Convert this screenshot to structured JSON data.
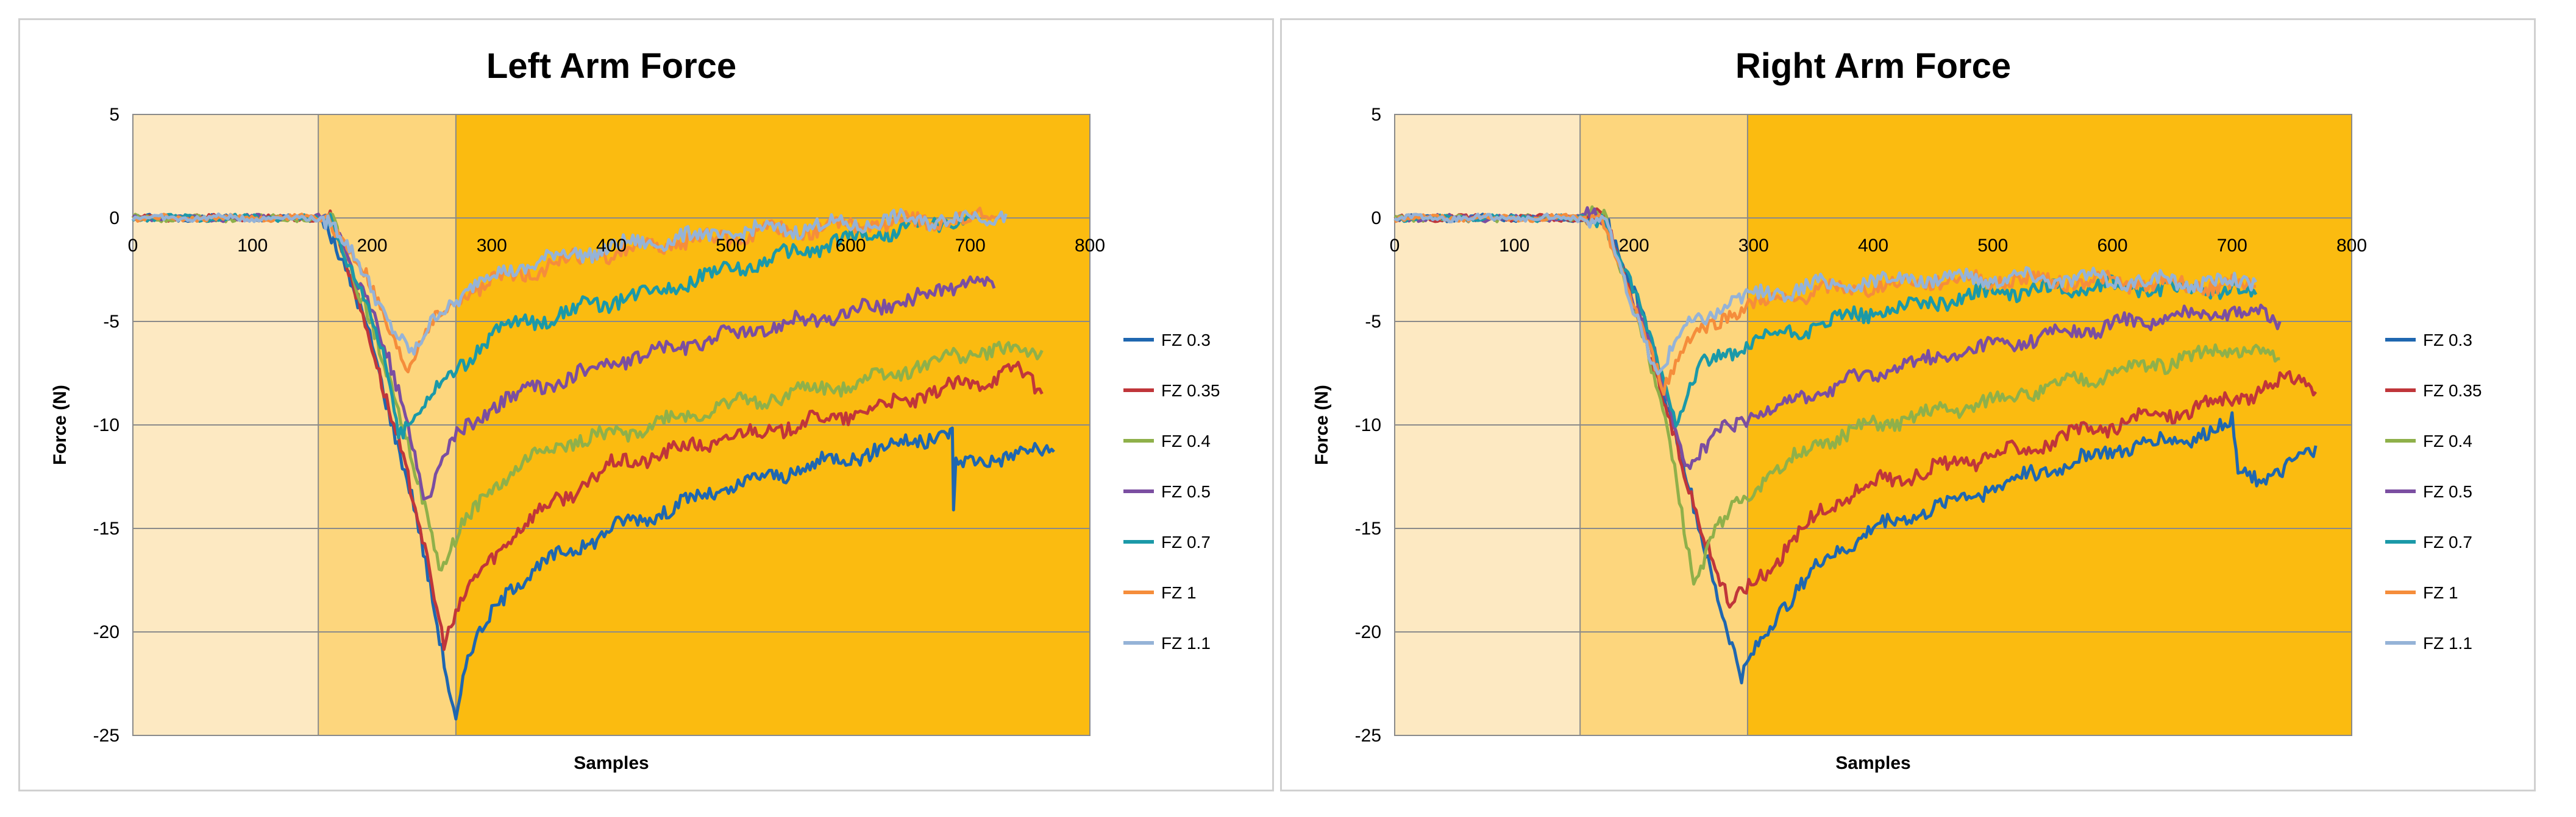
{
  "chart_data": [
    {
      "type": "line",
      "title": "Left Arm Force",
      "xlabel": "Samples",
      "ylabel": "Force (N)",
      "xlim": [
        0,
        800
      ],
      "ylim": [
        -25,
        5
      ],
      "xticks": [
        0,
        100,
        200,
        300,
        400,
        500,
        600,
        700,
        800
      ],
      "yticks": [
        5,
        0,
        -5,
        -10,
        -15,
        -20,
        -25
      ],
      "grid": true,
      "legend_position": "right",
      "regions": [
        {
          "from": 0,
          "to": 155,
          "color": "#fde9c2"
        },
        {
          "from": 155,
          "to": 270,
          "color": "#fdd67d"
        },
        {
          "from": 270,
          "to": 800,
          "color": "#fbbb10"
        }
      ],
      "series": [
        {
          "name": "FZ 0.3",
          "color": "#1f67b0",
          "points": [
            [
              0,
              0
            ],
            [
              160,
              0
            ],
            [
              200,
              -6
            ],
            [
              235,
              -14
            ],
            [
              270,
              -24.2
            ],
            [
              280,
              -21
            ],
            [
              320,
              -17.5
            ],
            [
              400,
              -15
            ],
            [
              500,
              -13
            ],
            [
              600,
              -11.5
            ],
            [
              680,
              -10.4
            ],
            [
              685,
              -10.5
            ],
            [
              686,
              -14
            ],
            [
              688,
              -12
            ],
            [
              720,
              -11.5
            ],
            [
              770,
              -11.3
            ]
          ]
        },
        {
          "name": "FZ 0.35",
          "color": "#c0363a",
          "points": [
            [
              0,
              0
            ],
            [
              165,
              0
            ],
            [
              200,
              -6
            ],
            [
              240,
              -15
            ],
            [
              260,
              -20.3
            ],
            [
              280,
              -18
            ],
            [
              320,
              -15
            ],
            [
              400,
              -12
            ],
            [
              500,
              -10.6
            ],
            [
              600,
              -9.5
            ],
            [
              700,
              -8
            ],
            [
              740,
              -7.3
            ],
            [
              760,
              -8.5
            ]
          ]
        },
        {
          "name": "FZ 0.4",
          "color": "#8fb04a",
          "points": [
            [
              0,
              0
            ],
            [
              165,
              0
            ],
            [
              200,
              -5
            ],
            [
              240,
              -13
            ],
            [
              258,
              -17
            ],
            [
              275,
              -15
            ],
            [
              300,
              -13
            ],
            [
              350,
              -11
            ],
            [
              400,
              -10.5
            ],
            [
              500,
              -9
            ],
            [
              600,
              -8
            ],
            [
              700,
              -6.5
            ],
            [
              760,
              -6.4
            ]
          ]
        },
        {
          "name": "FZ 0.5",
          "color": "#7b4ea1",
          "points": [
            [
              0,
              0
            ],
            [
              165,
              0
            ],
            [
              200,
              -4.5
            ],
            [
              230,
              -10
            ],
            [
              245,
              -13.5
            ],
            [
              265,
              -11
            ],
            [
              300,
              -9
            ],
            [
              400,
              -7
            ],
            [
              500,
              -5.6
            ],
            [
              600,
              -4.6
            ],
            [
              680,
              -3.5
            ],
            [
              700,
              -3
            ],
            [
              720,
              -3.4
            ]
          ]
        },
        {
          "name": "FZ 0.7",
          "color": "#1b99a8",
          "points": [
            [
              0,
              0
            ],
            [
              165,
              0
            ],
            [
              195,
              -4
            ],
            [
              215,
              -8
            ],
            [
              222,
              -10.5
            ],
            [
              240,
              -9
            ],
            [
              270,
              -7.5
            ],
            [
              300,
              -5.5
            ],
            [
              400,
              -4
            ],
            [
              500,
              -2.5
            ],
            [
              600,
              -1
            ],
            [
              650,
              -0.5
            ],
            [
              700,
              0
            ]
          ]
        },
        {
          "name": "FZ 1",
          "color": "#f58d3b",
          "points": [
            [
              0,
              0
            ],
            [
              165,
              0
            ],
            [
              195,
              -3
            ],
            [
              215,
              -5.5
            ],
            [
              230,
              -7.2
            ],
            [
              245,
              -5.5
            ],
            [
              280,
              -3.5
            ],
            [
              350,
              -2.2
            ],
            [
              450,
              -1.2
            ],
            [
              550,
              -0.6
            ],
            [
              650,
              -0.2
            ],
            [
              730,
              0
            ]
          ]
        },
        {
          "name": "FZ 1.1",
          "color": "#95b3d7",
          "points": [
            [
              0,
              0
            ],
            [
              165,
              0
            ],
            [
              195,
              -3
            ],
            [
              215,
              -5
            ],
            [
              235,
              -6.7
            ],
            [
              255,
              -4.6
            ],
            [
              290,
              -3
            ],
            [
              350,
              -1.9
            ],
            [
              450,
              -1
            ],
            [
              550,
              -0.5
            ],
            [
              650,
              -0.1
            ],
            [
              700,
              0
            ],
            [
              730,
              0.2
            ]
          ]
        }
      ]
    },
    {
      "type": "line",
      "title": "Right Arm Force",
      "xlabel": "Samples",
      "ylabel": "Force (N)",
      "xlim": [
        0,
        800
      ],
      "ylim": [
        -25,
        5
      ],
      "xticks": [
        0,
        100,
        200,
        300,
        400,
        500,
        600,
        700,
        800
      ],
      "yticks": [
        5,
        0,
        -5,
        -10,
        -15,
        -20,
        -25
      ],
      "grid": true,
      "legend_position": "right",
      "regions": [
        {
          "from": 0,
          "to": 155,
          "color": "#fde9c2"
        },
        {
          "from": 155,
          "to": 295,
          "color": "#fdd67d"
        },
        {
          "from": 295,
          "to": 800,
          "color": "#fbbb10"
        }
      ],
      "series": [
        {
          "name": "FZ 0.3",
          "color": "#1f67b0",
          "points": [
            [
              0,
              0
            ],
            [
              175,
              0
            ],
            [
              210,
              -5
            ],
            [
              250,
              -14
            ],
            [
              290,
              -22.3
            ],
            [
              320,
              -19
            ],
            [
              360,
              -16.5
            ],
            [
              400,
              -15
            ],
            [
              500,
              -13
            ],
            [
              600,
              -11.2
            ],
            [
              680,
              -10.4
            ],
            [
              700,
              -9.9
            ],
            [
              705,
              -12.3
            ],
            [
              740,
              -12.5
            ],
            [
              770,
              -11
            ]
          ]
        },
        {
          "name": "FZ 0.35",
          "color": "#c0363a",
          "points": [
            [
              0,
              0
            ],
            [
              175,
              0
            ],
            [
              205,
              -5
            ],
            [
              240,
              -12
            ],
            [
              280,
              -18.8
            ],
            [
              310,
              -17
            ],
            [
              360,
              -14
            ],
            [
              400,
              -12.8
            ],
            [
              500,
              -11.5
            ],
            [
              600,
              -10
            ],
            [
              700,
              -8.8
            ],
            [
              760,
              -7.6
            ],
            [
              770,
              -8.4
            ]
          ]
        },
        {
          "name": "FZ 0.4",
          "color": "#8fb04a",
          "points": [
            [
              0,
              0
            ],
            [
              175,
              0
            ],
            [
              205,
              -5
            ],
            [
              230,
              -11
            ],
            [
              250,
              -17.5
            ],
            [
              270,
              -15
            ],
            [
              300,
              -13
            ],
            [
              350,
              -11
            ],
            [
              400,
              -10
            ],
            [
              500,
              -8.8
            ],
            [
              600,
              -7.5
            ],
            [
              700,
              -6.3
            ],
            [
              740,
              -6.8
            ]
          ]
        },
        {
          "name": "FZ 0.5",
          "color": "#7b4ea1",
          "points": [
            [
              0,
              0
            ],
            [
              175,
              0
            ],
            [
              200,
              -4
            ],
            [
              225,
              -8
            ],
            [
              245,
              -12
            ],
            [
              270,
              -10.5
            ],
            [
              300,
              -9.5
            ],
            [
              400,
              -7.5
            ],
            [
              500,
              -6.2
            ],
            [
              600,
              -5.2
            ],
            [
              700,
              -4.4
            ],
            [
              740,
              -5
            ]
          ]
        },
        {
          "name": "FZ 0.7",
          "color": "#1b99a8",
          "points": [
            [
              0,
              0
            ],
            [
              175,
              0
            ],
            [
              195,
              -3
            ],
            [
              215,
              -6
            ],
            [
              235,
              -9.6
            ],
            [
              255,
              -7.2
            ],
            [
              300,
              -6
            ],
            [
              400,
              -4.5
            ],
            [
              500,
              -3.6
            ],
            [
              600,
              -3.3
            ],
            [
              700,
              -3.5
            ],
            [
              720,
              -3.7
            ]
          ]
        },
        {
          "name": "FZ 1",
          "color": "#f58d3b",
          "points": [
            [
              0,
              0
            ],
            [
              175,
              0
            ],
            [
              190,
              -3
            ],
            [
              210,
              -5.8
            ],
            [
              225,
              -8
            ],
            [
              245,
              -6
            ],
            [
              280,
              -4.5
            ],
            [
              350,
              -3.6
            ],
            [
              450,
              -3
            ],
            [
              550,
              -3
            ],
            [
              650,
              -3.2
            ],
            [
              720,
              -3.3
            ]
          ]
        },
        {
          "name": "FZ 1.1",
          "color": "#95b3d7",
          "points": [
            [
              0,
              0
            ],
            [
              175,
              0
            ],
            [
              190,
              -3
            ],
            [
              205,
              -5.2
            ],
            [
              220,
              -7.5
            ],
            [
              240,
              -5.5
            ],
            [
              280,
              -4
            ],
            [
              350,
              -3.3
            ],
            [
              450,
              -2.9
            ],
            [
              550,
              -2.9
            ],
            [
              650,
              -3.1
            ],
            [
              720,
              -3.1
            ]
          ]
        }
      ]
    }
  ]
}
